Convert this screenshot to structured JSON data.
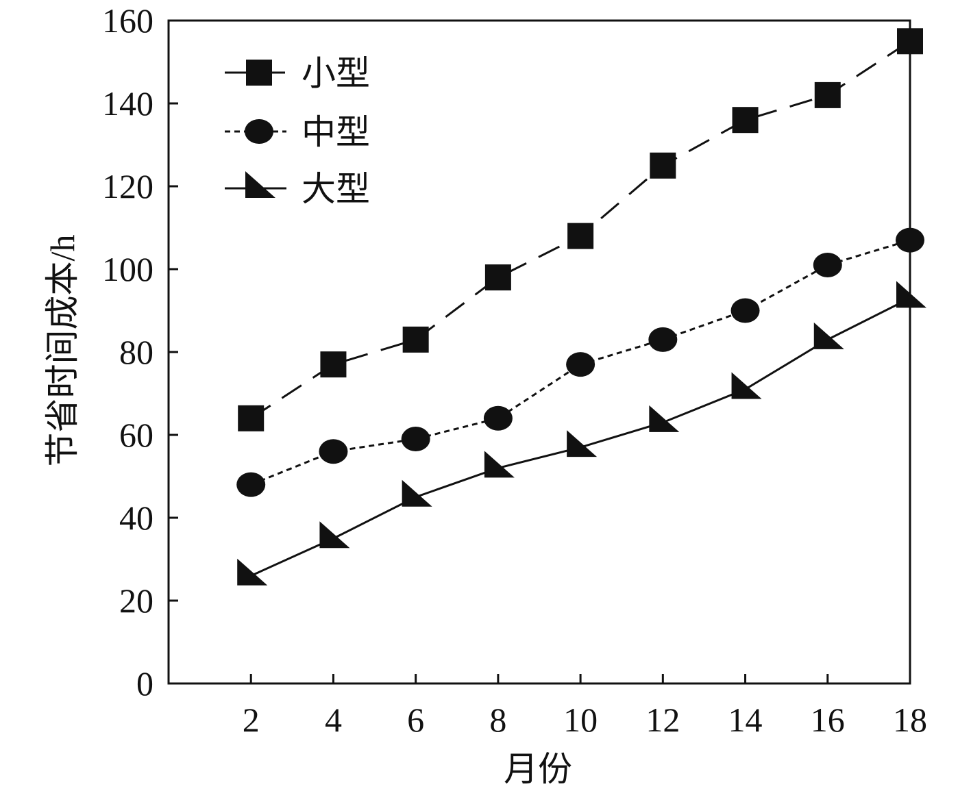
{
  "chart_data": {
    "type": "line",
    "title": "",
    "xlabel": "月份",
    "ylabel": "节省时间成本/h",
    "xlim": [
      0,
      18
    ],
    "ylim": [
      0,
      160
    ],
    "x_ticks": [
      2,
      4,
      6,
      8,
      10,
      12,
      14,
      16,
      18
    ],
    "y_ticks": [
      0,
      20,
      40,
      60,
      80,
      100,
      120,
      140,
      160
    ],
    "grid": false,
    "legend_position": "top-left",
    "series": [
      {
        "name": "小型",
        "marker": "square",
        "line_style": "dashed",
        "x": [
          2,
          4,
          6,
          8,
          10,
          12,
          14,
          16,
          18
        ],
        "values": [
          64,
          77,
          83,
          98,
          108,
          125,
          136,
          142,
          155
        ]
      },
      {
        "name": "中型",
        "marker": "circle",
        "line_style": "dotted",
        "x": [
          2,
          4,
          6,
          8,
          10,
          12,
          14,
          16,
          18
        ],
        "values": [
          48,
          56,
          59,
          64,
          77,
          83,
          90,
          101,
          107
        ]
      },
      {
        "name": "大型",
        "marker": "triangle",
        "line_style": "solid",
        "x": [
          2,
          4,
          6,
          8,
          10,
          12,
          14,
          16,
          18
        ],
        "values": [
          26,
          35,
          45,
          52,
          57,
          63,
          71,
          83,
          93
        ]
      }
    ],
    "colors": {
      "line": "#111111",
      "marker": "#111111",
      "axis": "#111111"
    }
  }
}
